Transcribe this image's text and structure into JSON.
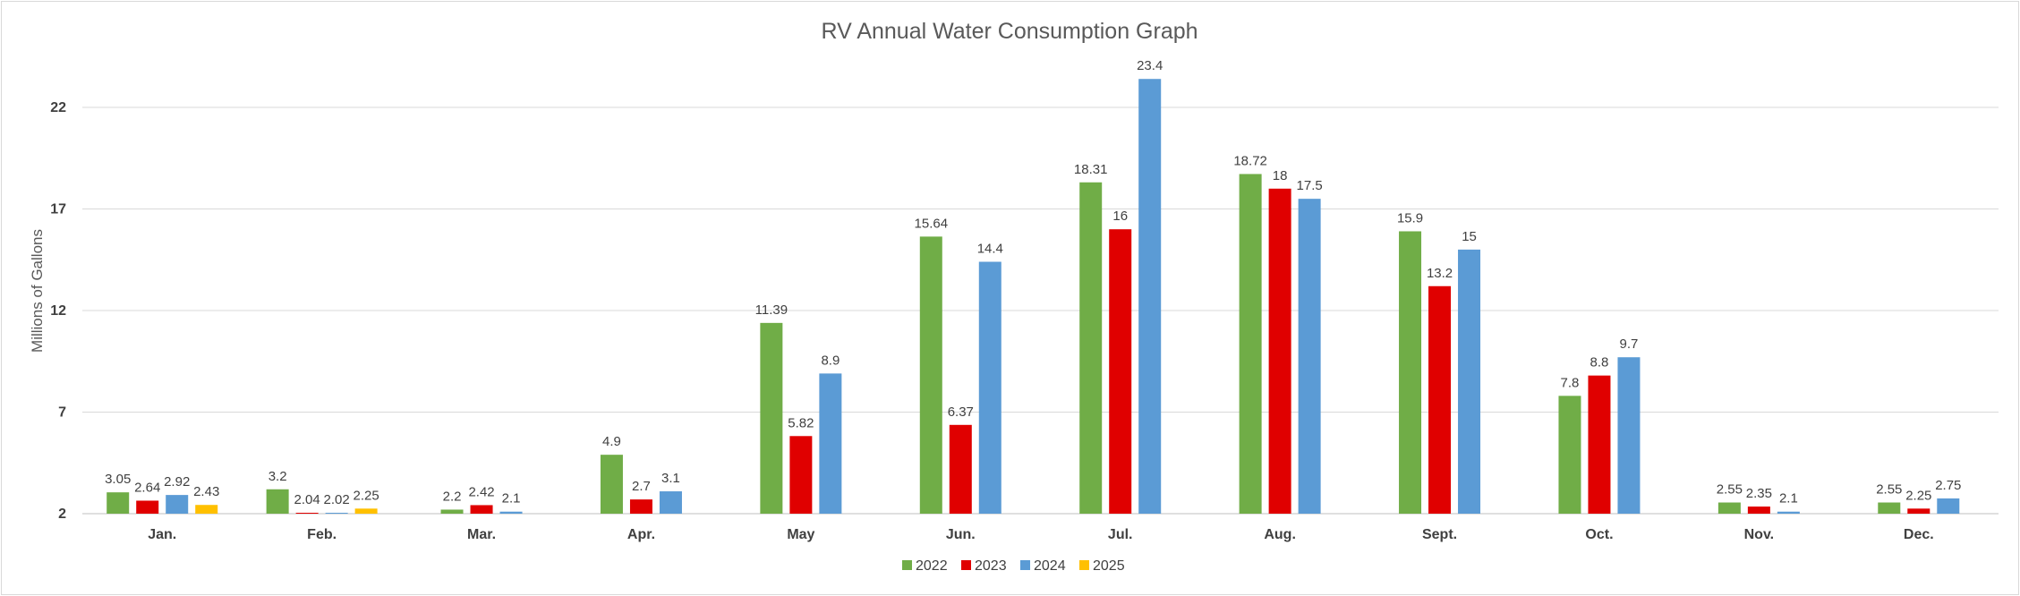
{
  "chart_data": {
    "type": "bar",
    "title": "RV Annual Water Consumption Graph",
    "xlabel": "",
    "ylabel": "Millions of Gallons",
    "ylim": [
      2,
      25.5
    ],
    "yticks": [
      2,
      7,
      12,
      17,
      22
    ],
    "grid": true,
    "legend_position": "bottom",
    "categories": [
      "Jan.",
      "Feb.",
      "Mar.",
      "Apr.",
      "May",
      "Jun.",
      "Jul.",
      "Aug.",
      "Sept.",
      "Oct.",
      "Nov.",
      "Dec."
    ],
    "series": [
      {
        "name": "2022",
        "color": "#70ad47",
        "values": [
          3.05,
          3.2,
          2.2,
          4.9,
          11.39,
          15.64,
          18.31,
          18.72,
          15.9,
          7.8,
          2.55,
          2.55
        ]
      },
      {
        "name": "2023",
        "color": "#e00000",
        "values": [
          2.64,
          2.04,
          2.42,
          2.7,
          5.82,
          6.37,
          16,
          18,
          13.2,
          8.8,
          2.35,
          2.25
        ]
      },
      {
        "name": "2024",
        "color": "#5b9bd5",
        "values": [
          2.92,
          2.02,
          2.1,
          3.1,
          8.9,
          14.4,
          23.4,
          17.5,
          15,
          9.7,
          2.1,
          2.75
        ]
      },
      {
        "name": "2025",
        "color": "#ffc000",
        "values": [
          2.43,
          2.25,
          null,
          null,
          null,
          null,
          null,
          null,
          null,
          null,
          null,
          null
        ]
      }
    ]
  }
}
